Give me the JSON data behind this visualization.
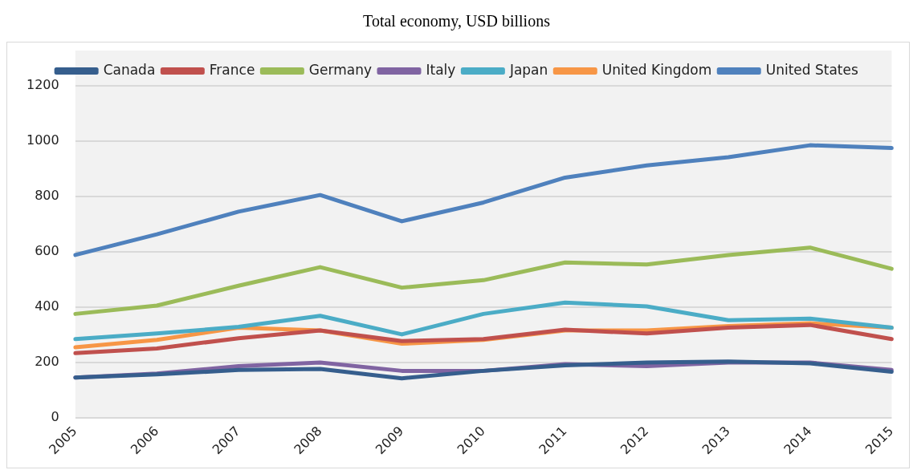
{
  "chart_data": {
    "type": "line",
    "title": "Total economy, USD billions",
    "categories": [
      "2005",
      "2006",
      "2007",
      "2008",
      "2009",
      "2010",
      "2011",
      "2012",
      "2013",
      "2014",
      "2015"
    ],
    "series": [
      {
        "name": "Canada",
        "color": "#365e8d",
        "values": [
          145,
          156,
          172,
          176,
          142,
          169,
          189,
          199,
          203,
          196,
          166
        ]
      },
      {
        "name": "France",
        "color": "#c0504d",
        "values": [
          233,
          250,
          287,
          315,
          277,
          284,
          318,
          304,
          325,
          335,
          284
        ]
      },
      {
        "name": "Germany",
        "color": "#9bbb59",
        "values": [
          375,
          405,
          477,
          544,
          470,
          497,
          561,
          554,
          588,
          615,
          538
        ]
      },
      {
        "name": "Italy",
        "color": "#8064a2",
        "values": [
          145,
          159,
          186,
          199,
          169,
          169,
          193,
          186,
          199,
          199,
          172
        ]
      },
      {
        "name": "Japan",
        "color": "#4bacc6",
        "values": [
          284,
          304,
          328,
          368,
          301,
          375,
          416,
          402,
          352,
          358,
          325
        ]
      },
      {
        "name": "United Kingdom",
        "color": "#f79646",
        "values": [
          254,
          281,
          325,
          315,
          267,
          281,
          315,
          315,
          331,
          341,
          325
        ]
      },
      {
        "name": "United States",
        "color": "#4f81bd",
        "values": [
          588,
          663,
          745,
          805,
          710,
          778,
          868,
          912,
          942,
          985,
          975
        ]
      }
    ],
    "ylim": [
      0,
      1200
    ],
    "yticks": [
      0,
      200,
      400,
      600,
      800,
      1000,
      1200
    ],
    "grid": "y",
    "legend": "top",
    "marker": "none",
    "line_style": "solid"
  }
}
